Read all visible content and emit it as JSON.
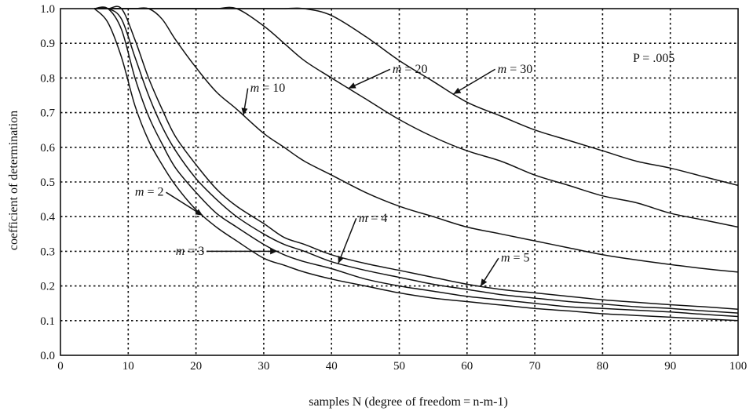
{
  "chart_data": {
    "type": "line",
    "title": "",
    "xlabel": "samples N (degree of freedom = n-m-1)",
    "ylabel": "coefficient of determination",
    "xlim": [
      0,
      100
    ],
    "ylim": [
      0.0,
      1.0
    ],
    "x_ticks": [
      "0",
      "10",
      "20",
      "30",
      "40",
      "50",
      "60",
      "70",
      "80",
      "90",
      "100"
    ],
    "y_ticks": [
      "0.0",
      "0.1",
      "0.2",
      "0.3",
      "0.4",
      "0.5",
      "0.6",
      "0.7",
      "0.8",
      "0.9",
      "1.0"
    ],
    "grid": true,
    "annotation_p": "P =  .005",
    "x": [
      5,
      7,
      9,
      11,
      13,
      15,
      17,
      20,
      23,
      26,
      30,
      33,
      36,
      40,
      45,
      50,
      55,
      60,
      65,
      70,
      75,
      80,
      85,
      90,
      95,
      100
    ],
    "series": [
      {
        "name": "m = 2",
        "label_prefix": "m",
        "label_rest": " = 2",
        "values": [
          1.0,
          0.96,
          0.86,
          0.72,
          0.62,
          0.55,
          0.49,
          0.42,
          0.37,
          0.33,
          0.28,
          0.26,
          0.24,
          0.22,
          0.2,
          0.18,
          0.165,
          0.155,
          0.145,
          0.135,
          0.128,
          0.12,
          0.115,
          0.11,
          0.105,
          0.1
        ]
      },
      {
        "name": "m = 3",
        "label_prefix": "m",
        "label_rest": " = 3",
        "values": [
          1.0,
          1.0,
          0.94,
          0.8,
          0.69,
          0.61,
          0.54,
          0.47,
          0.41,
          0.37,
          0.32,
          0.29,
          0.27,
          0.25,
          0.22,
          0.2,
          0.185,
          0.17,
          0.16,
          0.15,
          0.14,
          0.135,
          0.13,
          0.125,
          0.118,
          0.112
        ]
      },
      {
        "name": "m = 4",
        "label_prefix": "m",
        "label_rest": " = 4",
        "values": [
          1.0,
          1.0,
          0.97,
          0.86,
          0.75,
          0.66,
          0.59,
          0.51,
          0.45,
          0.4,
          0.35,
          0.32,
          0.3,
          0.27,
          0.245,
          0.225,
          0.205,
          0.19,
          0.175,
          0.165,
          0.155,
          0.148,
          0.14,
          0.135,
          0.128,
          0.122
        ]
      },
      {
        "name": "m = 5",
        "label_prefix": "m",
        "label_rest": " = 5",
        "values": [
          1.0,
          1.0,
          1.0,
          0.91,
          0.8,
          0.71,
          0.63,
          0.55,
          0.48,
          0.43,
          0.38,
          0.34,
          0.32,
          0.29,
          0.265,
          0.245,
          0.225,
          0.205,
          0.19,
          0.18,
          0.17,
          0.16,
          0.153,
          0.146,
          0.14,
          0.133
        ]
      },
      {
        "name": "m = 10",
        "label_prefix": "m",
        "label_rest": " = 10",
        "values": [
          1.0,
          1.0,
          1.0,
          1.0,
          1.0,
          0.97,
          0.91,
          0.83,
          0.76,
          0.71,
          0.64,
          0.6,
          0.56,
          0.52,
          0.47,
          0.43,
          0.4,
          0.37,
          0.35,
          0.33,
          0.31,
          0.29,
          0.275,
          0.262,
          0.25,
          0.24
        ]
      },
      {
        "name": "m = 20",
        "label_prefix": "m",
        "label_rest": " = 20",
        "values": [
          1.0,
          1.0,
          1.0,
          1.0,
          1.0,
          1.0,
          1.0,
          1.0,
          1.0,
          1.0,
          0.95,
          0.9,
          0.85,
          0.8,
          0.74,
          0.68,
          0.63,
          0.59,
          0.56,
          0.52,
          0.49,
          0.46,
          0.44,
          0.41,
          0.39,
          0.37
        ]
      },
      {
        "name": "m = 30",
        "label_prefix": "m",
        "label_rest": " = 30",
        "values": [
          1.0,
          1.0,
          1.0,
          1.0,
          1.0,
          1.0,
          1.0,
          1.0,
          1.0,
          1.0,
          1.0,
          1.0,
          1.0,
          0.98,
          0.92,
          0.85,
          0.79,
          0.73,
          0.69,
          0.65,
          0.62,
          0.59,
          0.56,
          0.54,
          0.515,
          0.49
        ]
      }
    ]
  }
}
